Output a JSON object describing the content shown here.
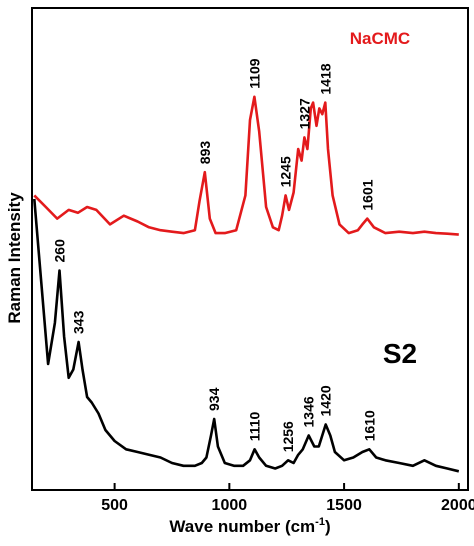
{
  "chart_data": {
    "type": "line",
    "xlabel_main": "Wave number (cm",
    "xlabel_sup": "-1",
    "xlabel_end": ")",
    "ylabel": "Raman Intensity",
    "xlim": [
      140,
      2040
    ],
    "xticks": [
      500,
      1000,
      1500,
      2000
    ],
    "y_units": "arbitrary (stacked spectra, no y tick labels)",
    "series": [
      {
        "name": "NaCMC",
        "color": "#e31a1c",
        "x": [
          150,
          200,
          250,
          300,
          340,
          380,
          420,
          480,
          540,
          600,
          650,
          700,
          750,
          800,
          850,
          870,
          893,
          915,
          940,
          980,
          1030,
          1070,
          1090,
          1109,
          1130,
          1160,
          1190,
          1215,
          1230,
          1245,
          1260,
          1280,
          1300,
          1315,
          1327,
          1340,
          1355,
          1365,
          1380,
          1392,
          1405,
          1418,
          1430,
          1450,
          1480,
          1520,
          1560,
          1580,
          1601,
          1630,
          1680,
          1740,
          1800,
          1850,
          1900,
          1950,
          2000
        ],
        "y": [
          14,
          10,
          6,
          9,
          8,
          10,
          9,
          4,
          7,
          5,
          3,
          2,
          1.5,
          1,
          2,
          12,
          22,
          6,
          1,
          1,
          2,
          14,
          40,
          48,
          36,
          10,
          3,
          2,
          7,
          14,
          9,
          15,
          30,
          26,
          34,
          30,
          44,
          46,
          38,
          44,
          42,
          46,
          30,
          14,
          4,
          1,
          2,
          4,
          6,
          3,
          1,
          1.5,
          1,
          1.5,
          1,
          0.8,
          0.5
        ],
        "peaks": [
          893,
          1109,
          1245,
          1327,
          1418,
          1601
        ],
        "peak_labels": [
          "893",
          "1109",
          "1245",
          "1327",
          "1418",
          "1601"
        ]
      },
      {
        "name": "S2",
        "color": "#000000",
        "x": [
          150,
          180,
          210,
          240,
          260,
          280,
          300,
          320,
          343,
          360,
          380,
          400,
          430,
          460,
          500,
          550,
          600,
          650,
          700,
          750,
          800,
          850,
          880,
          900,
          920,
          934,
          950,
          980,
          1020,
          1060,
          1090,
          1110,
          1130,
          1160,
          1200,
          1230,
          1256,
          1280,
          1300,
          1320,
          1346,
          1370,
          1390,
          1420,
          1440,
          1460,
          1500,
          1540,
          1580,
          1610,
          1640,
          1680,
          1740,
          1800,
          1850,
          1900,
          1950,
          2000
        ],
        "y": [
          100,
          70,
          40,
          55,
          74,
          50,
          35,
          38,
          48,
          38,
          28,
          26,
          22,
          16,
          12,
          9,
          8,
          7,
          6,
          4,
          3,
          3,
          4,
          6,
          14,
          20,
          10,
          4,
          3,
          3,
          5,
          9,
          6,
          3,
          2,
          3,
          5,
          4,
          7,
          9,
          14,
          10,
          10,
          18,
          14,
          8,
          5,
          6,
          8,
          9,
          6,
          5,
          4,
          3,
          5,
          3,
          2,
          1
        ]
      }
    ],
    "series_label_NaCMC": "NaCMC",
    "series_label_S2": "S2",
    "s2_peak_labels": [
      "260",
      "343",
      "934",
      "1110",
      "1256",
      "1346",
      "1420",
      "1610"
    ],
    "s2_peaks": [
      260,
      343,
      934,
      1110,
      1256,
      1346,
      1420,
      1610
    ]
  }
}
